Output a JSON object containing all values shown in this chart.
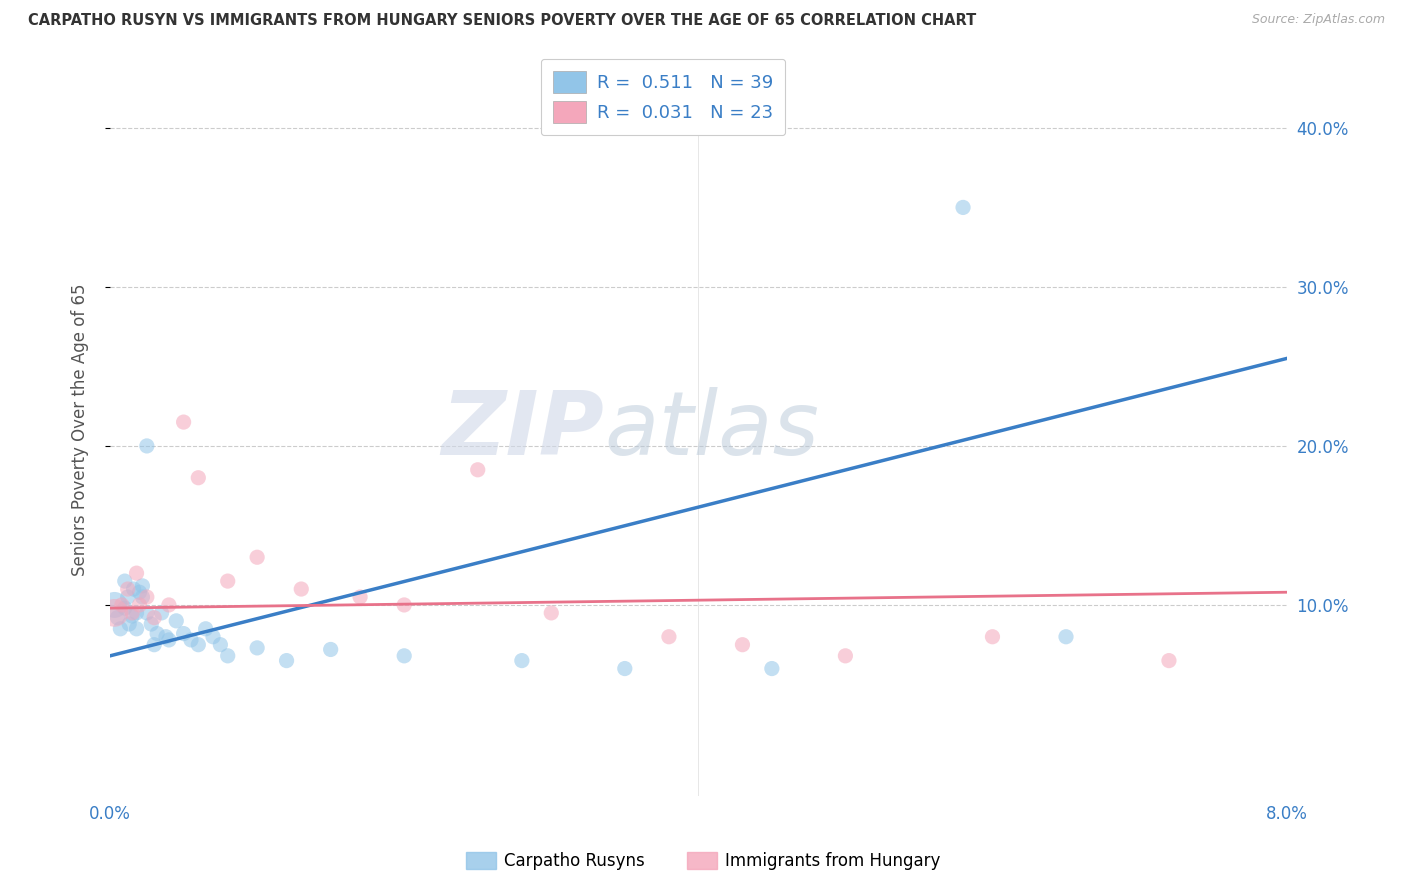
{
  "title": "CARPATHO RUSYN VS IMMIGRANTS FROM HUNGARY SENIORS POVERTY OVER THE AGE OF 65 CORRELATION CHART",
  "source": "Source: ZipAtlas.com",
  "ylabel": "Seniors Poverty Over the Age of 65",
  "xlim": [
    0.0,
    0.08
  ],
  "ylim": [
    -0.02,
    0.44
  ],
  "yticks": [
    0.1,
    0.2,
    0.3,
    0.4
  ],
  "ytick_labels": [
    "10.0%",
    "20.0%",
    "30.0%",
    "40.0%"
  ],
  "xticks": [
    0.0,
    0.02,
    0.04,
    0.06,
    0.08
  ],
  "xtick_labels_left": [
    "0.0%",
    "",
    "",
    "",
    ""
  ],
  "xtick_labels_right": [
    "",
    "",
    "",
    "",
    "8.0%"
  ],
  "blue_R": 0.511,
  "blue_N": 39,
  "pink_R": 0.031,
  "pink_N": 23,
  "blue_color": "#92C5E8",
  "pink_color": "#F4A7BB",
  "blue_line_color": "#3A7EC6",
  "pink_line_color": "#E8728A",
  "legend1_label": "Carpatho Rusyns",
  "legend2_label": "Immigrants from Hungary",
  "watermark_zip": "ZIP",
  "watermark_atlas": "atlas",
  "blue_line_x": [
    0.0,
    0.08
  ],
  "blue_line_y": [
    0.068,
    0.255
  ],
  "pink_line_x": [
    0.0,
    0.08
  ],
  "pink_line_y": [
    0.098,
    0.108
  ],
  "blue_scatter_x": [
    0.0003,
    0.0005,
    0.0007,
    0.001,
    0.001,
    0.0012,
    0.0013,
    0.0015,
    0.0016,
    0.0018,
    0.0018,
    0.002,
    0.0022,
    0.0022,
    0.0025,
    0.0025,
    0.0028,
    0.003,
    0.0032,
    0.0035,
    0.0038,
    0.004,
    0.0045,
    0.005,
    0.0055,
    0.006,
    0.0065,
    0.007,
    0.0075,
    0.008,
    0.01,
    0.012,
    0.015,
    0.02,
    0.028,
    0.035,
    0.045,
    0.058,
    0.065
  ],
  "blue_scatter_y": [
    0.1,
    0.092,
    0.085,
    0.115,
    0.098,
    0.105,
    0.088,
    0.093,
    0.11,
    0.095,
    0.085,
    0.108,
    0.112,
    0.105,
    0.2,
    0.095,
    0.088,
    0.075,
    0.082,
    0.095,
    0.08,
    0.078,
    0.09,
    0.082,
    0.078,
    0.075,
    0.085,
    0.08,
    0.075,
    0.068,
    0.073,
    0.065,
    0.072,
    0.068,
    0.065,
    0.06,
    0.06,
    0.35,
    0.08
  ],
  "blue_scatter_size": [
    350,
    120,
    120,
    120,
    120,
    120,
    120,
    120,
    120,
    120,
    120,
    120,
    120,
    120,
    120,
    120,
    120,
    120,
    120,
    120,
    120,
    120,
    120,
    120,
    120,
    120,
    120,
    120,
    120,
    120,
    120,
    120,
    120,
    120,
    120,
    120,
    120,
    120,
    120
  ],
  "pink_scatter_x": [
    0.0003,
    0.0008,
    0.0012,
    0.0015,
    0.0018,
    0.002,
    0.0025,
    0.003,
    0.004,
    0.005,
    0.006,
    0.008,
    0.01,
    0.013,
    0.017,
    0.02,
    0.025,
    0.03,
    0.038,
    0.043,
    0.05,
    0.06,
    0.072
  ],
  "pink_scatter_y": [
    0.095,
    0.1,
    0.11,
    0.095,
    0.12,
    0.1,
    0.105,
    0.092,
    0.1,
    0.215,
    0.18,
    0.115,
    0.13,
    0.11,
    0.105,
    0.1,
    0.185,
    0.095,
    0.08,
    0.075,
    0.068,
    0.08,
    0.065
  ],
  "pink_scatter_size": [
    400,
    120,
    120,
    120,
    120,
    120,
    120,
    120,
    120,
    120,
    120,
    120,
    120,
    120,
    120,
    120,
    120,
    120,
    120,
    120,
    120,
    120,
    120
  ]
}
